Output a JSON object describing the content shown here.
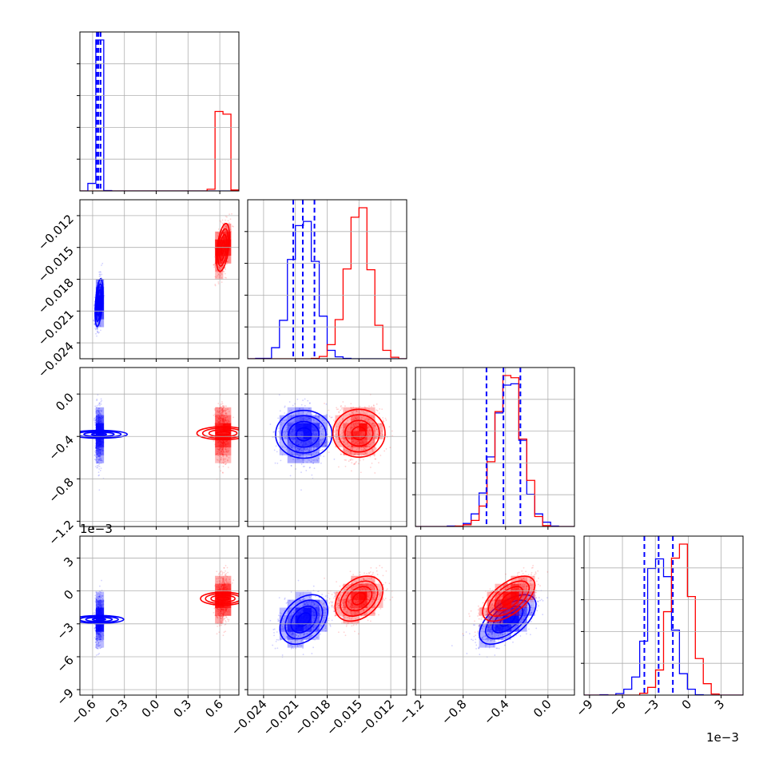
{
  "figure": {
    "kind": "corner-plot",
    "grid": true,
    "dims": 4
  },
  "colors": {
    "series_a": "#0000ff",
    "series_b": "#ff0000",
    "grid": "#b0b0b0",
    "axis": "#000000"
  },
  "chart_data": {
    "type": "scatter",
    "grid": true,
    "series": [
      {
        "color": "#0000ff",
        "mean": [
          -0.54,
          -0.0202,
          -0.00038,
          -0.0026
        ],
        "sd": [
          0.018,
          0.0011,
          0.00013,
          0.0011
        ],
        "corr": 0.45
      },
      {
        "color": "#ff0000",
        "mean": [
          0.63,
          -0.015,
          -0.00037,
          -0.0007
        ],
        "sd": [
          0.03,
          0.0011,
          0.00012,
          0.001
        ],
        "corr": 0.45
      }
    ],
    "quantiles_series_a": [
      [
        -0.56,
        -0.545,
        -0.525
      ],
      [
        -0.0212,
        -0.0203,
        -0.0192
      ],
      [
        -0.00058,
        -0.00042,
        -0.00026
      ],
      [
        -0.004,
        -0.0027,
        -0.0014
      ]
    ],
    "axes": [
      {
        "range": [
          -0.72,
          0.78
        ],
        "ticks": [
          -0.6,
          -0.3,
          0.0,
          0.3,
          0.6
        ],
        "tick_labels": [
          "−0.6",
          "−0.3",
          "0.0",
          "0.3",
          "0.6"
        ]
      },
      {
        "range": [
          -0.0255,
          -0.0105
        ],
        "ticks": [
          -0.024,
          -0.021,
          -0.018,
          -0.015,
          -0.012
        ],
        "tick_labels": [
          "−0.024",
          "−0.021",
          "−0.018",
          "−0.015",
          "−0.012"
        ]
      },
      {
        "range": [
          -0.00125,
          0.00025
        ],
        "ticks": [
          -0.0012,
          -0.0008,
          -0.0004,
          0.0
        ],
        "tick_labels": [
          "−1.2",
          "−0.8",
          "−0.4",
          "0.0"
        ]
      },
      {
        "range": [
          -0.0095,
          0.005
        ],
        "ticks": [
          -0.009,
          -0.006,
          -0.003,
          0.0,
          0.003
        ],
        "tick_labels": [
          "−9",
          "−6",
          "−3",
          "0",
          "3"
        ]
      }
    ],
    "offset_labels": {
      "row_2": "1e−3",
      "col_3": "1e−3"
    },
    "histogram_bins": 20,
    "samples_per_series": 1500
  }
}
